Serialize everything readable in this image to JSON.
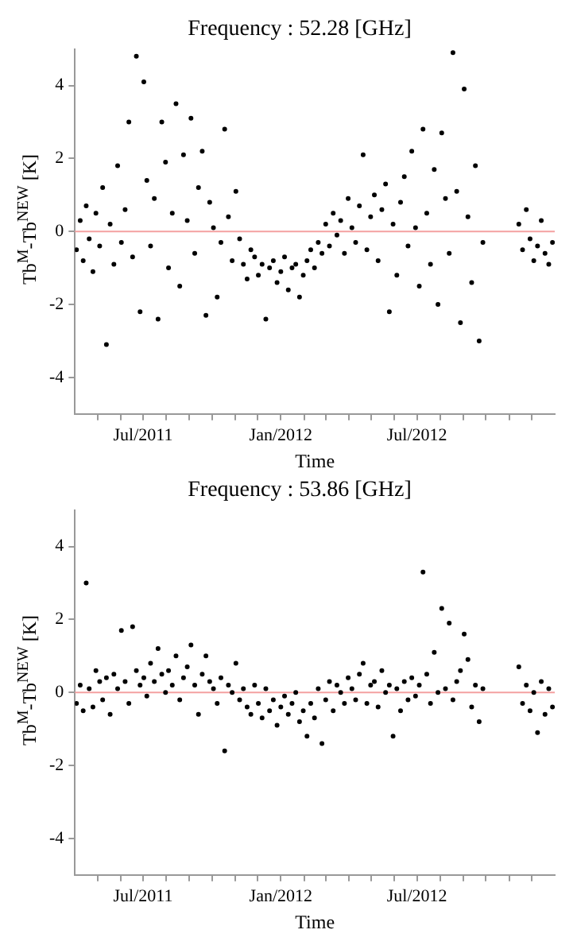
{
  "chart_data": [
    {
      "type": "scatter",
      "title": "Frequency : 52.28 [GHz]",
      "xlabel": "Time",
      "ylabel": "Tb$^{M}$-Tb$^{NEW}$ [K]",
      "grid": false,
      "legend": false,
      "marker": "circle",
      "xlim": [
        "2011-04-01",
        "2013-01-01"
      ],
      "xticks": [
        {
          "value": "2011-05-01",
          "label": null
        },
        {
          "value": "2011-06-01",
          "label": null
        },
        {
          "value": "2011-07-01",
          "label": "Jul/2011"
        },
        {
          "value": "2011-08-01",
          "label": null
        },
        {
          "value": "2011-09-01",
          "label": null
        },
        {
          "value": "2011-10-01",
          "label": null
        },
        {
          "value": "2011-11-01",
          "label": null
        },
        {
          "value": "2011-12-01",
          "label": null
        },
        {
          "value": "2012-01-01",
          "label": "Jan/2012"
        },
        {
          "value": "2012-02-01",
          "label": null
        },
        {
          "value": "2012-03-01",
          "label": null
        },
        {
          "value": "2012-04-01",
          "label": null
        },
        {
          "value": "2012-05-01",
          "label": null
        },
        {
          "value": "2012-06-01",
          "label": null
        },
        {
          "value": "2012-07-01",
          "label": "Jul/2012"
        },
        {
          "value": "2012-08-01",
          "label": null
        },
        {
          "value": "2012-09-01",
          "label": null
        },
        {
          "value": "2012-10-01",
          "label": null
        },
        {
          "value": "2012-11-01",
          "label": null
        },
        {
          "value": "2012-12-01",
          "label": null
        }
      ],
      "ylim": [
        -5,
        5
      ],
      "yticks": [
        -4,
        -2,
        0,
        2,
        4
      ],
      "ref_lines": [
        {
          "axis": "y",
          "value": 0,
          "color": "#f4a0a0"
        }
      ],
      "x": [
        "2011-04-03",
        "2011-04-08",
        "2011-04-12",
        "2011-04-16",
        "2011-04-20",
        "2011-04-25",
        "2011-04-29",
        "2011-05-04",
        "2011-05-08",
        "2011-05-13",
        "2011-05-18",
        "2011-05-23",
        "2011-05-28",
        "2011-06-02",
        "2011-06-07",
        "2011-06-12",
        "2011-06-17",
        "2011-06-22",
        "2011-06-27",
        "2011-07-02",
        "2011-07-06",
        "2011-07-11",
        "2011-07-16",
        "2011-07-21",
        "2011-07-26",
        "2011-07-31",
        "2011-08-04",
        "2011-08-09",
        "2011-08-14",
        "2011-08-19",
        "2011-08-24",
        "2011-08-29",
        "2011-09-03",
        "2011-09-08",
        "2011-09-13",
        "2011-09-18",
        "2011-09-23",
        "2011-09-28",
        "2011-10-03",
        "2011-10-08",
        "2011-10-13",
        "2011-10-18",
        "2011-10-23",
        "2011-10-28",
        "2011-11-02",
        "2011-11-07",
        "2011-11-12",
        "2011-11-17",
        "2011-11-22",
        "2011-11-27",
        "2011-12-02",
        "2011-12-07",
        "2011-12-12",
        "2011-12-17",
        "2011-12-22",
        "2011-12-27",
        "2012-01-01",
        "2012-01-06",
        "2012-01-11",
        "2012-01-16",
        "2012-01-21",
        "2012-01-26",
        "2012-01-31",
        "2012-02-05",
        "2012-02-10",
        "2012-02-15",
        "2012-02-20",
        "2012-02-25",
        "2012-03-01",
        "2012-03-06",
        "2012-03-11",
        "2012-03-16",
        "2012-03-21",
        "2012-03-26",
        "2012-03-31",
        "2012-04-05",
        "2012-04-10",
        "2012-04-15",
        "2012-04-20",
        "2012-04-25",
        "2012-04-30",
        "2012-05-05",
        "2012-05-10",
        "2012-05-15",
        "2012-05-20",
        "2012-05-25",
        "2012-05-30",
        "2012-06-04",
        "2012-06-09",
        "2012-06-14",
        "2012-06-19",
        "2012-06-24",
        "2012-06-29",
        "2012-07-04",
        "2012-07-09",
        "2012-07-14",
        "2012-07-19",
        "2012-07-24",
        "2012-07-29",
        "2012-08-03",
        "2012-08-08",
        "2012-08-13",
        "2012-08-18",
        "2012-08-23",
        "2012-08-28",
        "2012-09-02",
        "2012-09-07",
        "2012-09-12",
        "2012-09-17",
        "2012-09-22",
        "2012-09-27",
        "2012-11-14",
        "2012-11-19",
        "2012-11-24",
        "2012-11-29",
        "2012-12-04",
        "2012-12-09",
        "2012-12-14",
        "2012-12-19",
        "2012-12-24",
        "2012-12-29"
      ],
      "series": [
        {
          "color": "#000000",
          "values": [
            -0.5,
            0.3,
            -0.8,
            0.7,
            -0.2,
            -1.1,
            0.5,
            -0.4,
            1.2,
            -3.1,
            0.2,
            -0.9,
            1.8,
            -0.3,
            0.6,
            3.0,
            -0.7,
            4.8,
            -2.2,
            4.1,
            1.4,
            -0.4,
            0.9,
            -2.4,
            3.0,
            1.9,
            -1.0,
            0.5,
            3.5,
            -1.5,
            2.1,
            0.3,
            3.1,
            -0.6,
            1.2,
            2.2,
            -2.3,
            0.8,
            0.1,
            -1.8,
            -0.3,
            2.8,
            0.4,
            -0.8,
            1.1,
            -0.2,
            -0.9,
            -1.3,
            -0.5,
            -0.7,
            -1.2,
            -0.9,
            -2.4,
            -1.0,
            -0.8,
            -1.4,
            -1.1,
            -0.7,
            -1.6,
            -1.0,
            -0.9,
            -1.8,
            -1.2,
            -0.8,
            -0.5,
            -1.0,
            -0.3,
            -0.6,
            0.2,
            -0.4,
            0.5,
            -0.1,
            0.3,
            -0.6,
            0.9,
            0.1,
            -0.3,
            0.7,
            2.1,
            -0.5,
            0.4,
            1.0,
            -0.8,
            0.6,
            1.3,
            -2.2,
            0.2,
            -1.2,
            0.8,
            1.5,
            -0.4,
            2.2,
            0.1,
            -1.5,
            2.8,
            0.5,
            -0.9,
            1.7,
            -2.0,
            2.7,
            0.9,
            -0.6,
            4.9,
            1.1,
            -2.5,
            3.9,
            0.4,
            -1.4,
            1.8,
            -3.0,
            -0.3,
            0.2,
            -0.5,
            0.6,
            -0.2,
            -0.8,
            -0.4,
            0.3,
            -0.6,
            -0.9,
            -0.3
          ]
        }
      ]
    },
    {
      "type": "scatter",
      "title": "Frequency : 53.86 [GHz]",
      "xlabel": "Time",
      "ylabel": "Tb$^{M}$-Tb$^{NEW}$ [K]",
      "grid": false,
      "legend": false,
      "marker": "circle",
      "xlim": [
        "2011-04-01",
        "2013-01-01"
      ],
      "xticks": [
        {
          "value": "2011-05-01",
          "label": null
        },
        {
          "value": "2011-06-01",
          "label": null
        },
        {
          "value": "2011-07-01",
          "label": "Jul/2011"
        },
        {
          "value": "2011-08-01",
          "label": null
        },
        {
          "value": "2011-09-01",
          "label": null
        },
        {
          "value": "2011-10-01",
          "label": null
        },
        {
          "value": "2011-11-01",
          "label": null
        },
        {
          "value": "2011-12-01",
          "label": null
        },
        {
          "value": "2012-01-01",
          "label": "Jan/2012"
        },
        {
          "value": "2012-02-01",
          "label": null
        },
        {
          "value": "2012-03-01",
          "label": null
        },
        {
          "value": "2012-04-01",
          "label": null
        },
        {
          "value": "2012-05-01",
          "label": null
        },
        {
          "value": "2012-06-01",
          "label": null
        },
        {
          "value": "2012-07-01",
          "label": "Jul/2012"
        },
        {
          "value": "2012-08-01",
          "label": null
        },
        {
          "value": "2012-09-01",
          "label": null
        },
        {
          "value": "2012-10-01",
          "label": null
        },
        {
          "value": "2012-11-01",
          "label": null
        },
        {
          "value": "2012-12-01",
          "label": null
        }
      ],
      "ylim": [
        -5,
        5
      ],
      "yticks": [
        -4,
        -2,
        0,
        2,
        4
      ],
      "ref_lines": [
        {
          "axis": "y",
          "value": 0,
          "color": "#f4a0a0"
        }
      ],
      "x": [
        "2011-04-03",
        "2011-04-08",
        "2011-04-12",
        "2011-04-16",
        "2011-04-20",
        "2011-04-25",
        "2011-04-29",
        "2011-05-04",
        "2011-05-08",
        "2011-05-13",
        "2011-05-18",
        "2011-05-23",
        "2011-05-28",
        "2011-06-02",
        "2011-06-07",
        "2011-06-12",
        "2011-06-17",
        "2011-06-22",
        "2011-06-27",
        "2011-07-02",
        "2011-07-06",
        "2011-07-11",
        "2011-07-16",
        "2011-07-21",
        "2011-07-26",
        "2011-07-31",
        "2011-08-04",
        "2011-08-09",
        "2011-08-14",
        "2011-08-19",
        "2011-08-24",
        "2011-08-29",
        "2011-09-03",
        "2011-09-08",
        "2011-09-13",
        "2011-09-18",
        "2011-09-23",
        "2011-09-28",
        "2011-10-03",
        "2011-10-08",
        "2011-10-13",
        "2011-10-18",
        "2011-10-23",
        "2011-10-28",
        "2011-11-02",
        "2011-11-07",
        "2011-11-12",
        "2011-11-17",
        "2011-11-22",
        "2011-11-27",
        "2011-12-02",
        "2011-12-07",
        "2011-12-12",
        "2011-12-17",
        "2011-12-22",
        "2011-12-27",
        "2012-01-01",
        "2012-01-06",
        "2012-01-11",
        "2012-01-16",
        "2012-01-21",
        "2012-01-26",
        "2012-01-31",
        "2012-02-05",
        "2012-02-10",
        "2012-02-15",
        "2012-02-20",
        "2012-02-25",
        "2012-03-01",
        "2012-03-06",
        "2012-03-11",
        "2012-03-16",
        "2012-03-21",
        "2012-03-26",
        "2012-03-31",
        "2012-04-05",
        "2012-04-10",
        "2012-04-15",
        "2012-04-20",
        "2012-04-25",
        "2012-04-30",
        "2012-05-05",
        "2012-05-10",
        "2012-05-15",
        "2012-05-20",
        "2012-05-25",
        "2012-05-30",
        "2012-06-04",
        "2012-06-09",
        "2012-06-14",
        "2012-06-19",
        "2012-06-24",
        "2012-06-29",
        "2012-07-04",
        "2012-07-09",
        "2012-07-14",
        "2012-07-19",
        "2012-07-24",
        "2012-07-29",
        "2012-08-03",
        "2012-08-08",
        "2012-08-13",
        "2012-08-18",
        "2012-08-23",
        "2012-08-28",
        "2012-09-02",
        "2012-09-07",
        "2012-09-12",
        "2012-09-17",
        "2012-09-22",
        "2012-09-27",
        "2012-11-14",
        "2012-11-19",
        "2012-11-24",
        "2012-11-29",
        "2012-12-04",
        "2012-12-09",
        "2012-12-14",
        "2012-12-19",
        "2012-12-24",
        "2012-12-29"
      ],
      "series": [
        {
          "color": "#000000",
          "values": [
            -0.3,
            0.2,
            -0.5,
            3.0,
            0.1,
            -0.4,
            0.6,
            0.3,
            -0.2,
            0.4,
            -0.6,
            0.5,
            0.1,
            1.7,
            0.3,
            -0.3,
            1.8,
            0.6,
            0.2,
            0.4,
            -0.1,
            0.8,
            0.3,
            1.2,
            0.5,
            0.0,
            0.6,
            0.2,
            1.0,
            -0.2,
            0.4,
            0.7,
            1.3,
            0.2,
            -0.6,
            0.5,
            1.0,
            0.3,
            0.1,
            -0.3,
            0.4,
            -1.6,
            0.2,
            0.0,
            0.8,
            -0.2,
            0.1,
            -0.4,
            -0.6,
            0.2,
            -0.3,
            -0.7,
            0.1,
            -0.5,
            -0.2,
            -0.9,
            -0.4,
            -0.1,
            -0.6,
            -0.3,
            0.0,
            -0.8,
            -0.5,
            -1.2,
            -0.3,
            -0.7,
            0.1,
            -1.4,
            -0.2,
            0.3,
            -0.5,
            0.2,
            0.0,
            -0.3,
            0.4,
            0.1,
            -0.2,
            0.5,
            0.8,
            -0.3,
            0.2,
            0.3,
            -0.4,
            0.6,
            0.0,
            0.2,
            -1.2,
            0.1,
            -0.5,
            0.3,
            -0.2,
            0.4,
            -0.1,
            0.2,
            3.3,
            0.5,
            -0.3,
            1.1,
            0.0,
            2.3,
            0.1,
            1.9,
            -0.2,
            0.3,
            0.6,
            1.6,
            0.9,
            -0.4,
            0.2,
            -0.8,
            0.1,
            0.7,
            -0.3,
            0.2,
            -0.5,
            0.0,
            -1.1,
            0.3,
            -0.6,
            0.1,
            -0.4
          ]
        }
      ]
    }
  ]
}
